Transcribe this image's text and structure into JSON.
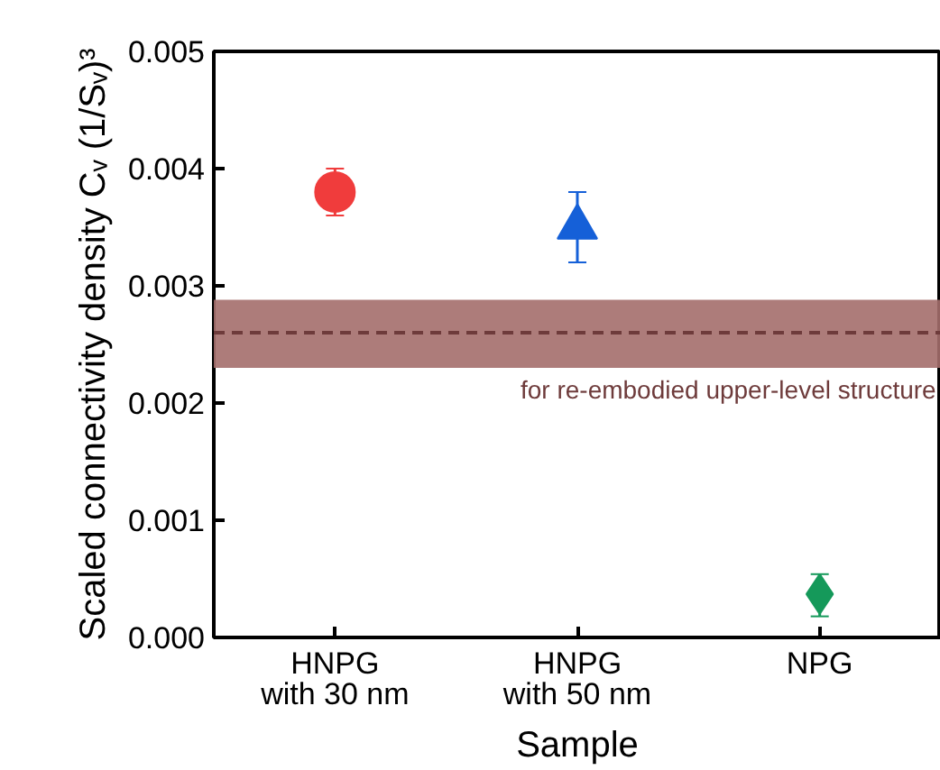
{
  "chart_data": {
    "type": "scatter",
    "xlabel": "Sample",
    "ylabel": "Scaled connectivity density Cᵥ (1/Sᵥ)³",
    "categories": [
      "HNPG\nwith 30 nm",
      "HNPG\nwith 50 nm",
      "NPG"
    ],
    "series": [
      {
        "color": "#f03c3c",
        "marker": "circle",
        "values": [
          0.0038,
          null,
          null
        ],
        "errors": [
          [
            0.0036,
            0.004
          ],
          null,
          null
        ]
      },
      {
        "color": "#1560d8",
        "marker": "triangle",
        "values": [
          null,
          0.0035,
          null
        ],
        "errors": [
          null,
          [
            0.0032,
            0.0038
          ],
          null
        ]
      },
      {
        "color": "#15995a",
        "marker": "diamond",
        "values": [
          null,
          null,
          0.00037
        ],
        "errors": [
          null,
          null,
          [
            0.00018,
            0.00054
          ]
        ]
      }
    ],
    "ylim": [
      0,
      0.005
    ],
    "yticks": [
      {
        "value": 0,
        "label": "0.000"
      },
      {
        "value": 0.001,
        "label": "0.001"
      },
      {
        "value": 0.002,
        "label": "0.002"
      },
      {
        "value": 0.003,
        "label": "0.003"
      },
      {
        "value": 0.004,
        "label": "0.004"
      },
      {
        "value": 0.005,
        "label": "0.005"
      }
    ],
    "ref_lines": [
      {
        "axis": "y",
        "value": 0.0026,
        "color": "#6e3b3b",
        "line_style": "dashed"
      }
    ],
    "bands": [
      {
        "axis": "y",
        "from": 0.0023,
        "to": 0.00288,
        "color": "#a46e6b",
        "label": "for re-embodied upper-level structure"
      }
    ]
  }
}
